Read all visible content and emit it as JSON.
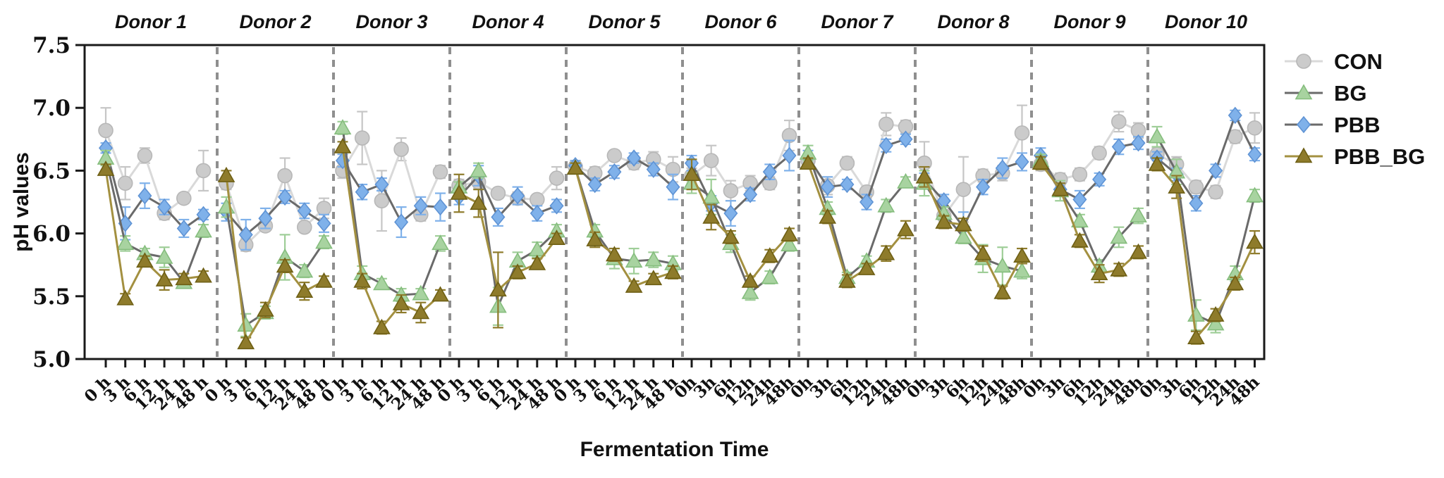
{
  "chart_data": {
    "type": "line",
    "title": "",
    "xlabel": "Fermentation Time",
    "ylabel": "pH values",
    "ylim": [
      5.0,
      7.5
    ],
    "ytick_values": [
      7.5,
      7.0,
      6.5,
      6.0,
      5.5,
      5.0
    ],
    "ytick_labels": [
      "7.5",
      "7.0",
      "6.5",
      "6.0",
      "5.5",
      "5.0"
    ],
    "grid": false,
    "legend_position": "right-top",
    "legend": [
      {
        "label": "CON",
        "series": "CON"
      },
      {
        "label": "BG",
        "series": "BG"
      },
      {
        "label": "PBB",
        "series": "PBB"
      },
      {
        "label": "PBB_BG",
        "series": "PBB_BG"
      }
    ],
    "series_order": [
      "CON",
      "PBB",
      "BG",
      "PBB_BG"
    ],
    "series_styles": {
      "CON": {
        "marker": "circle",
        "marker_color": "#cbcbcb",
        "marker_edge": "#b7b7b7",
        "line_color": "#d9d9d9",
        "error_color": "#c6c6c6"
      },
      "BG": {
        "marker": "triangle",
        "marker_color": "#a8d3a0",
        "marker_edge": "#85bd7d",
        "line_color": "#6a6a6a",
        "error_color": "#9fce98"
      },
      "PBB": {
        "marker": "diamond",
        "marker_color": "#7fb1ea",
        "marker_edge": "#5f93d4",
        "line_color": "#6a6a6a",
        "error_color": "#7fb1ea"
      },
      "PBB_BG": {
        "marker": "triangle",
        "marker_color": "#8e7b2b",
        "marker_edge": "#6e5f14",
        "line_color": "#a39040",
        "error_color": "#8e7b2b"
      }
    },
    "separator_color": "#8f8f8f",
    "axis_color": "#1a1a1a",
    "donors": [
      {
        "label": "Donor 1",
        "timepoints": [
          "0 h",
          "3 h",
          "6 h",
          "12 h",
          "24 h",
          "48 h"
        ],
        "series": {
          "CON": {
            "values": [
              6.82,
              6.4,
              6.62,
              6.16,
              6.28,
              6.5
            ],
            "errors": [
              0.18,
              0.13,
              0.06,
              0.05,
              0.04,
              0.16
            ]
          },
          "BG": {
            "values": [
              6.6,
              5.92,
              5.84,
              5.81,
              5.61,
              6.02
            ],
            "errors": [
              0.06,
              0.06,
              0.04,
              0.08,
              0.04,
              0.05
            ]
          },
          "PBB": {
            "values": [
              6.68,
              6.08,
              6.3,
              6.21,
              6.04,
              6.15
            ],
            "errors": [
              0.04,
              0.13,
              0.1,
              0.06,
              0.07,
              0.04
            ]
          },
          "PBB_BG": {
            "values": [
              6.51,
              5.48,
              5.78,
              5.63,
              5.64,
              5.66
            ],
            "errors": [
              0.04,
              0.04,
              0.04,
              0.08,
              0.04,
              0.04
            ]
          }
        }
      },
      {
        "label": "Donor 2",
        "timepoints": [
          "0 h",
          "3 h",
          "6 h",
          "12 h",
          "24 h",
          "48 h"
        ],
        "series": {
          "CON": {
            "values": [
              6.4,
              5.91,
              6.06,
              6.46,
              6.05,
              6.2
            ],
            "errors": [
              0.05,
              0.05,
              0.04,
              0.14,
              0.04,
              0.08
            ]
          },
          "BG": {
            "values": [
              6.21,
              5.27,
              5.37,
              5.81,
              5.7,
              5.93
            ],
            "errors": [
              0.08,
              0.09,
              0.05,
              0.18,
              0.05,
              0.05
            ]
          },
          "PBB": {
            "values": [
              6.17,
              5.99,
              6.12,
              6.29,
              6.18,
              6.08
            ],
            "errors": [
              0.07,
              0.12,
              0.08,
              0.05,
              0.06,
              0.07
            ]
          },
          "PBB_BG": {
            "values": [
              6.46,
              5.13,
              5.39,
              5.74,
              5.54,
              5.62
            ],
            "errors": [
              0.04,
              0.04,
              0.06,
              0.05,
              0.07,
              0.04
            ]
          }
        }
      },
      {
        "label": "Donor 3",
        "timepoints": [
          "0 h",
          "3 h",
          "6 h",
          "12 h",
          "24 h",
          "48 h"
        ],
        "series": {
          "CON": {
            "values": [
              6.5,
              6.76,
              6.26,
              6.67,
              6.15,
              6.49
            ],
            "errors": [
              0.06,
              0.21,
              0.24,
              0.09,
              0.05,
              0.05
            ]
          },
          "BG": {
            "values": [
              6.84,
              5.68,
              5.6,
              5.51,
              5.52,
              5.92
            ],
            "errors": [
              0.05,
              0.06,
              0.04,
              0.05,
              0.04,
              0.06
            ]
          },
          "PBB": {
            "values": [
              6.58,
              6.33,
              6.39,
              6.09,
              6.22,
              6.21
            ],
            "errors": [
              0.05,
              0.06,
              0.05,
              0.12,
              0.07,
              0.11
            ]
          },
          "PBB_BG": {
            "values": [
              6.69,
              5.62,
              5.25,
              5.44,
              5.37,
              5.51
            ],
            "errors": [
              0.04,
              0.06,
              0.05,
              0.07,
              0.08,
              0.04
            ]
          }
        }
      },
      {
        "label": "Donor 4",
        "timepoints": [
          "0 h",
          "3 h",
          "6 h",
          "12 h",
          "24 h",
          "48 h"
        ],
        "series": {
          "CON": {
            "values": [
              6.38,
              6.41,
              6.32,
              6.28,
              6.27,
              6.44
            ],
            "errors": [
              0.05,
              0.05,
              0.04,
              0.05,
              0.04,
              0.09
            ]
          },
          "BG": {
            "values": [
              6.37,
              6.5,
              5.42,
              5.78,
              5.87,
              6.02
            ],
            "errors": [
              0.04,
              0.06,
              0.15,
              0.07,
              0.06,
              0.05
            ]
          },
          "PBB": {
            "values": [
              6.29,
              6.46,
              6.13,
              6.3,
              6.16,
              6.22
            ],
            "errors": [
              0.06,
              0.08,
              0.07,
              0.07,
              0.06,
              0.05
            ]
          },
          "PBB_BG": {
            "values": [
              6.32,
              6.24,
              5.55,
              5.69,
              5.76,
              5.96
            ],
            "errors": [
              0.15,
              0.11,
              0.3,
              0.05,
              0.04,
              0.04
            ]
          }
        }
      },
      {
        "label": "Donor 5",
        "timepoints": [
          "0 h",
          "3 h",
          "6 h",
          "12 h",
          "24 h",
          "48 h"
        ],
        "series": {
          "CON": {
            "values": [
              6.53,
              6.48,
              6.62,
              6.56,
              6.59,
              6.51
            ],
            "errors": [
              0.04,
              0.05,
              0.04,
              0.05,
              0.06,
              0.1
            ]
          },
          "BG": {
            "values": [
              6.52,
              6.02,
              5.8,
              5.78,
              5.79,
              5.76
            ],
            "errors": [
              0.04,
              0.05,
              0.08,
              0.1,
              0.06,
              0.06
            ]
          },
          "PBB": {
            "values": [
              6.54,
              6.39,
              6.49,
              6.6,
              6.51,
              6.37
            ],
            "errors": [
              0.04,
              0.05,
              0.05,
              0.04,
              0.05,
              0.1
            ]
          },
          "PBB_BG": {
            "values": [
              6.52,
              5.95,
              5.83,
              5.58,
              5.64,
              5.69
            ],
            "errors": [
              0.04,
              0.06,
              0.05,
              0.04,
              0.04,
              0.05
            ]
          }
        }
      },
      {
        "label": "Donor 6",
        "timepoints": [
          "0h",
          "3h",
          "6h",
          "12h",
          "24h",
          "48h"
        ],
        "series": {
          "CON": {
            "values": [
              6.46,
              6.58,
              6.34,
              6.4,
              6.4,
              6.78
            ],
            "errors": [
              0.06,
              0.12,
              0.08,
              0.06,
              0.05,
              0.12
            ]
          },
          "BG": {
            "values": [
              6.4,
              6.29,
              5.92,
              5.53,
              5.65,
              5.91
            ],
            "errors": [
              0.08,
              0.14,
              0.07,
              0.06,
              0.05,
              0.05
            ]
          },
          "PBB": {
            "values": [
              6.56,
              6.24,
              6.16,
              6.31,
              6.49,
              6.62
            ],
            "errors": [
              0.06,
              0.06,
              0.1,
              0.05,
              0.06,
              0.12
            ]
          },
          "PBB_BG": {
            "values": [
              6.47,
              6.13,
              5.97,
              5.62,
              5.82,
              5.99
            ],
            "errors": [
              0.12,
              0.1,
              0.05,
              0.04,
              0.05,
              0.05
            ]
          }
        }
      },
      {
        "label": "Donor 7",
        "timepoints": [
          "0h",
          "3h",
          "6h",
          "12h",
          "24h",
          "48h"
        ],
        "series": {
          "CON": {
            "values": [
              6.58,
              6.38,
              6.56,
              6.33,
              6.87,
              6.85
            ],
            "errors": [
              0.05,
              0.07,
              0.05,
              0.05,
              0.09,
              0.05
            ]
          },
          "BG": {
            "values": [
              6.64,
              6.2,
              5.65,
              5.78,
              6.22,
              6.41
            ],
            "errors": [
              0.06,
              0.05,
              0.04,
              0.04,
              0.05,
              0.04
            ]
          },
          "PBB": {
            "values": [
              6.61,
              6.37,
              6.39,
              6.25,
              6.7,
              6.75
            ],
            "errors": [
              0.05,
              0.08,
              0.04,
              0.06,
              0.05,
              0.04
            ]
          },
          "PBB_BG": {
            "values": [
              6.56,
              6.13,
              5.62,
              5.72,
              5.84,
              6.03
            ],
            "errors": [
              0.04,
              0.05,
              0.05,
              0.04,
              0.06,
              0.07
            ]
          }
        }
      },
      {
        "label": "Donor 8",
        "timepoints": [
          "0h",
          "3h",
          "6h",
          "12h",
          "24h",
          "48h"
        ],
        "series": {
          "CON": {
            "values": [
              6.56,
              6.14,
              6.35,
              6.46,
              6.48,
              6.8
            ],
            "errors": [
              0.17,
              0.05,
              0.26,
              0.05,
              0.06,
              0.22
            ]
          },
          "BG": {
            "values": [
              6.4,
              6.16,
              5.97,
              5.8,
              5.74,
              5.7
            ],
            "errors": [
              0.1,
              0.05,
              0.05,
              0.11,
              0.15,
              0.06
            ]
          },
          "PBB": {
            "values": [
              6.43,
              6.26,
              6.05,
              6.37,
              6.52,
              6.57
            ],
            "errors": [
              0.05,
              0.05,
              0.12,
              0.06,
              0.08,
              0.07
            ]
          },
          "PBB_BG": {
            "values": [
              6.45,
              6.09,
              6.07,
              5.84,
              5.53,
              5.82
            ],
            "errors": [
              0.08,
              0.05,
              0.05,
              0.06,
              0.05,
              0.06
            ]
          }
        }
      },
      {
        "label": "Donor 9",
        "timepoints": [
          "0h",
          "3h",
          "6h",
          "12h",
          "24h",
          "48h"
        ],
        "series": {
          "CON": {
            "values": [
              6.55,
              6.43,
              6.47,
              6.64,
              6.89,
              6.82
            ],
            "errors": [
              0.05,
              0.05,
              0.05,
              0.05,
              0.08,
              0.06
            ]
          },
          "BG": {
            "values": [
              6.58,
              6.34,
              6.1,
              5.74,
              5.97,
              6.14
            ],
            "errors": [
              0.05,
              0.08,
              0.05,
              0.05,
              0.08,
              0.06
            ]
          },
          "PBB": {
            "values": [
              6.62,
              6.35,
              6.27,
              6.43,
              6.69,
              6.72
            ],
            "errors": [
              0.06,
              0.05,
              0.07,
              0.05,
              0.06,
              0.05
            ]
          },
          "PBB_BG": {
            "values": [
              6.56,
              6.35,
              5.94,
              5.68,
              5.71,
              5.85
            ],
            "errors": [
              0.05,
              0.05,
              0.05,
              0.07,
              0.05,
              0.05
            ]
          }
        }
      },
      {
        "label": "Donor 10",
        "timepoints": [
          "0h",
          "3h",
          "6h",
          "12h",
          "24h",
          "48h"
        ],
        "series": {
          "CON": {
            "values": [
              6.63,
              6.55,
              6.37,
              6.33,
              6.77,
              6.84
            ],
            "errors": [
              0.05,
              0.06,
              0.05,
              0.05,
              0.05,
              0.12
            ]
          },
          "BG": {
            "values": [
              6.77,
              6.49,
              5.35,
              5.28,
              5.68,
              6.3
            ],
            "errors": [
              0.08,
              0.1,
              0.12,
              0.07,
              0.06,
              0.05
            ]
          },
          "PBB": {
            "values": [
              6.6,
              6.47,
              6.24,
              6.5,
              6.94,
              6.63
            ],
            "errors": [
              0.05,
              0.05,
              0.06,
              0.05,
              0.04,
              0.05
            ]
          },
          "PBB_BG": {
            "values": [
              6.55,
              6.37,
              5.17,
              5.35,
              5.6,
              5.93
            ],
            "errors": [
              0.05,
              0.09,
              0.05,
              0.05,
              0.05,
              0.09
            ]
          }
        }
      }
    ]
  }
}
